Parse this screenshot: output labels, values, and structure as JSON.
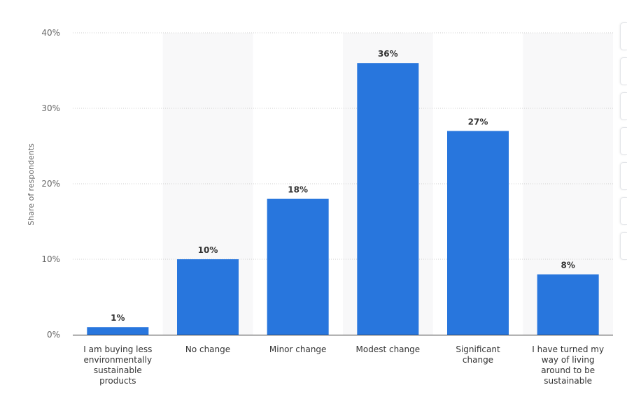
{
  "chart_data": {
    "type": "bar",
    "categories": [
      [
        "I am buying less",
        "environmentally",
        "sustainable",
        "products"
      ],
      [
        "No change"
      ],
      [
        "Minor change"
      ],
      [
        "Modest change"
      ],
      [
        "Significant",
        "change"
      ],
      [
        "I have turned my",
        "way of living",
        "around to be",
        "sustainable"
      ]
    ],
    "values": [
      1,
      10,
      18,
      36,
      27,
      8
    ],
    "data_labels": [
      "1%",
      "10%",
      "18%",
      "36%",
      "27%",
      "8%"
    ],
    "yticks": [
      "0%",
      "10%",
      "20%",
      "30%",
      "40%"
    ],
    "ylabel": "Share of respondents",
    "ylim": [
      0,
      40
    ],
    "grid": true,
    "colors": {
      "bar": "#2876dd",
      "band": "#f8f8f9",
      "grid": "#cfcfcf",
      "axis": "#333333"
    }
  }
}
